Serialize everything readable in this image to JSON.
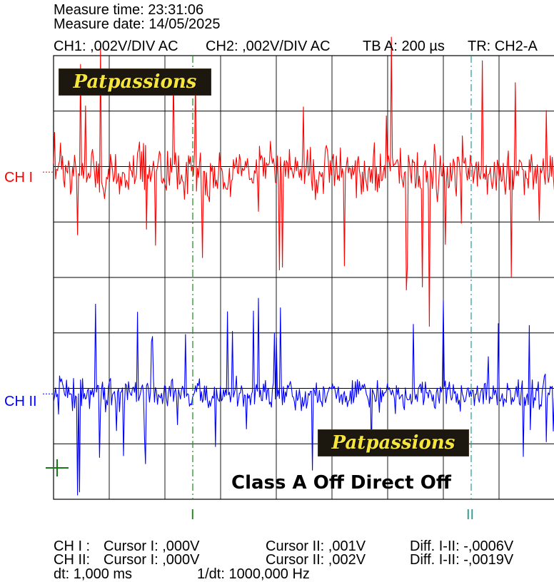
{
  "header": {
    "measure_time": "Measure time: 23:31:06",
    "measure_date": "Measure date: 14/05/2025",
    "ch1_setting": "CH1: ,002V/DIV AC",
    "ch2_setting": "CH2: ,002V/DIV AC",
    "timebase": "TB A: 200 µs",
    "trigger": "TR: CH2-A"
  },
  "channel_labels": {
    "ch1": "CH I",
    "ch2": "CH II"
  },
  "cursor_labels": {
    "cursor1": "I",
    "cursor2": "II"
  },
  "watermark": "Patpassions",
  "caption": "Class A Off Direct Off",
  "readouts": {
    "ch1_line": {
      "name": "CH I :",
      "cursor1": "Cursor I: ,000V",
      "cursor2": "Cursor II: ,001V",
      "diff": "Diff. I-II: -,0006V"
    },
    "ch2_line": {
      "name": "CH II:",
      "cursor1": "Cursor I: ,000V",
      "cursor2": "Cursor II: ,002V",
      "diff": "Diff. I-II: -,0019V"
    },
    "dt": "dt: 1,000 ms",
    "inv_dt": "1/dt: 1000,000 Hz"
  },
  "colors": {
    "ch1": "#ff0000",
    "ch2": "#0000ff",
    "grid": "#000000",
    "cursor": "#1a8a1a",
    "cursor2": "#2a9a9a",
    "marker": "#1a7a1a"
  },
  "chart_data": {
    "type": "line",
    "grid": true,
    "divisions": {
      "x": 9,
      "y": 8
    },
    "cursor_time_div": [
      2.5,
      7.5
    ],
    "series": [
      {
        "name": "CH I",
        "color": "#ff0000",
        "center_div": 2.1,
        "noise_div": 0.45,
        "spike_div": 1.6
      },
      {
        "name": "CH II",
        "color": "#0000ff",
        "center_div": 6.1,
        "noise_div": 0.28,
        "spike_div": 1.3
      }
    ]
  }
}
